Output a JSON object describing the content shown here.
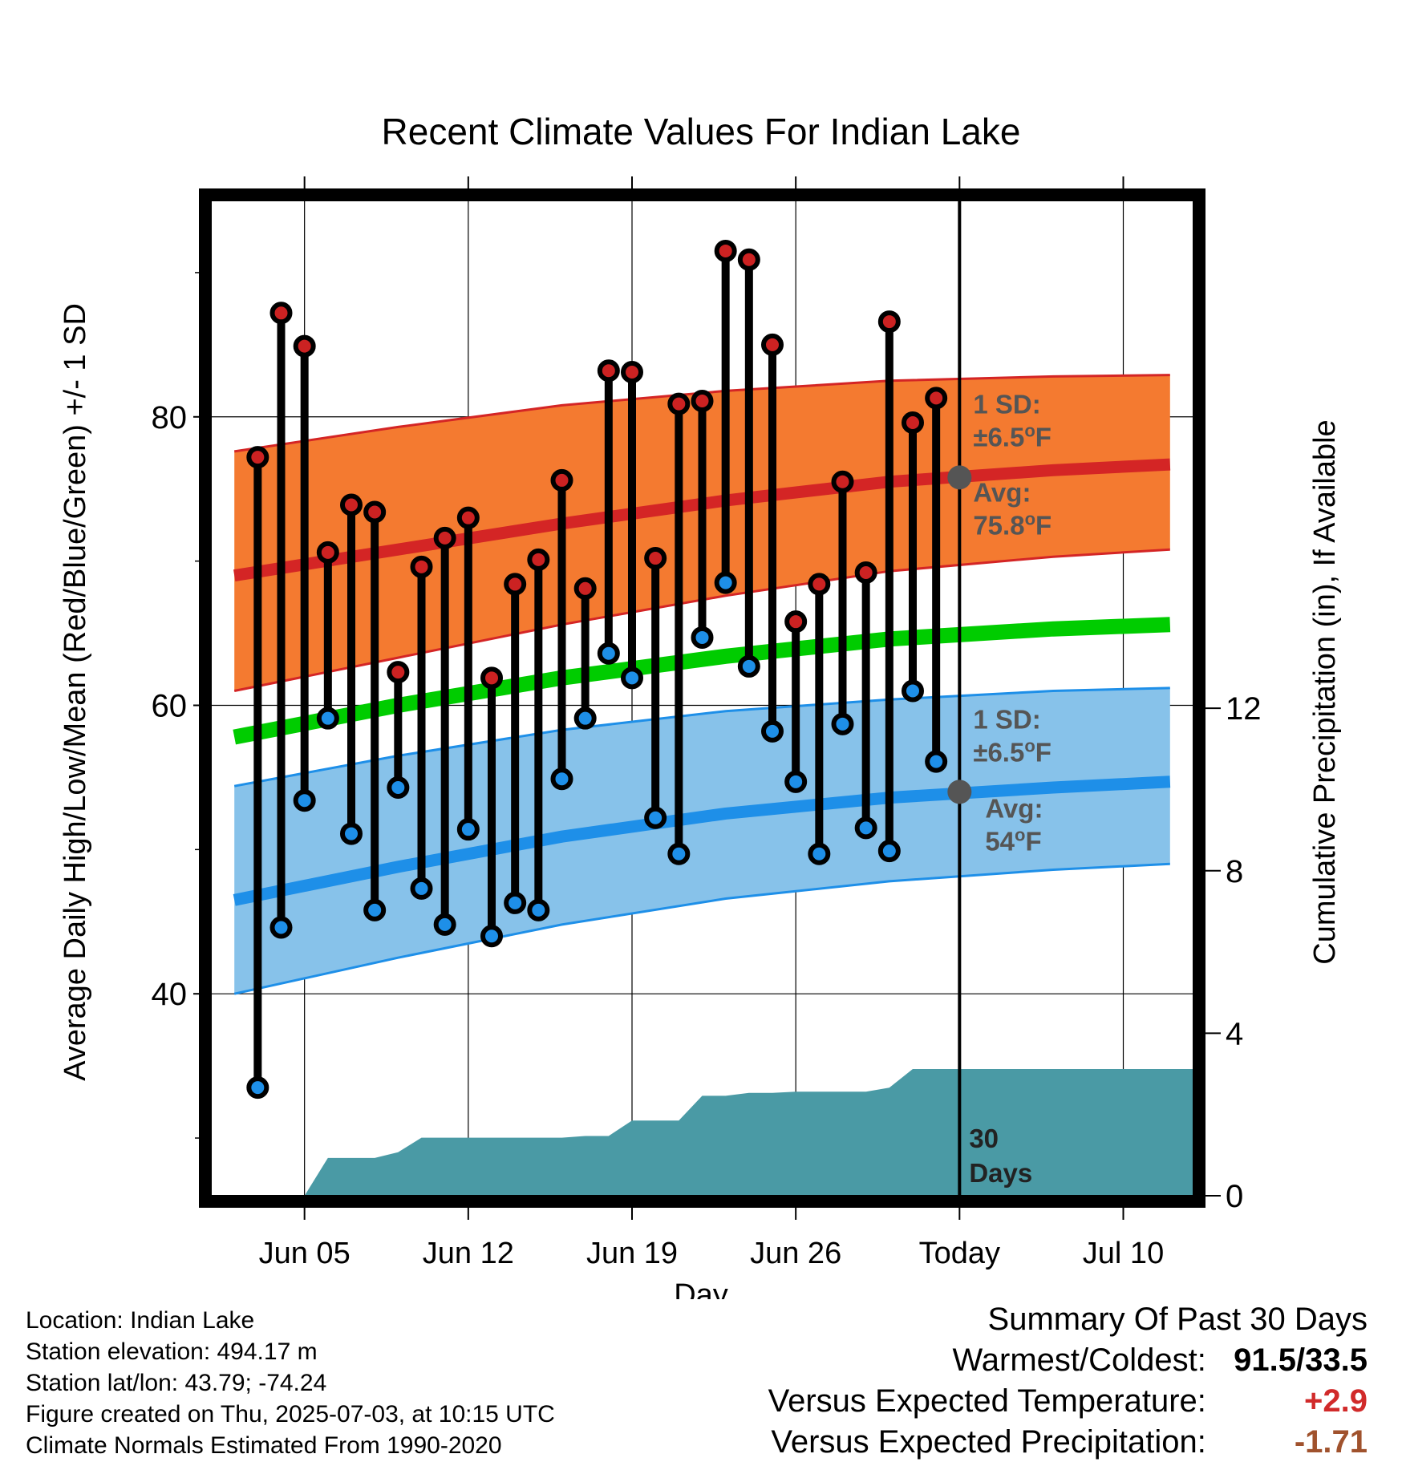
{
  "chart_data": {
    "type": "line",
    "title": "Recent Climate Values For Indian Lake",
    "xlabel": "Day",
    "ylabel_left": "Average Daily High/Low/Mean (Red/Blue/Green) +/- 1 SD",
    "ylabel_right": "Cumulative Precipitation (in), If Available",
    "x_range": [
      "2025-06-01",
      "2025-07-13"
    ],
    "x_ticks": [
      {
        "date": "2025-06-05",
        "label": "Jun 05"
      },
      {
        "date": "2025-06-12",
        "label": "Jun 12"
      },
      {
        "date": "2025-06-19",
        "label": "Jun 19"
      },
      {
        "date": "2025-06-26",
        "label": "Jun 26"
      },
      {
        "date": "2025-07-03",
        "label": "Today"
      },
      {
        "date": "2025-07-10",
        "label": "Jul 10"
      }
    ],
    "ylim_left": [
      26,
      95
    ],
    "y_ticks_left": [
      40,
      60,
      80
    ],
    "ylim_right": [
      0,
      24.5
    ],
    "y_ticks_right": [
      0,
      4,
      8,
      12
    ],
    "today": "2025-07-03",
    "grid": true,
    "normals": {
      "x": [
        "2025-06-02",
        "2025-06-09",
        "2025-06-16",
        "2025-06-23",
        "2025-06-30",
        "2025-07-07",
        "2025-07-12"
      ],
      "high_avg": [
        69.0,
        70.8,
        72.6,
        74.2,
        75.5,
        76.3,
        76.7
      ],
      "high_sd_upper": [
        77.6,
        79.3,
        80.8,
        81.8,
        82.5,
        82.8,
        82.9
      ],
      "high_sd_lower": [
        61.0,
        63.3,
        65.6,
        67.6,
        69.3,
        70.3,
        70.8
      ],
      "mean_avg": [
        57.8,
        60.0,
        61.9,
        63.4,
        64.6,
        65.3,
        65.6
      ],
      "low_avg": [
        46.5,
        48.8,
        50.9,
        52.5,
        53.6,
        54.3,
        54.7
      ],
      "low_sd_upper": [
        54.4,
        56.5,
        58.3,
        59.6,
        60.4,
        61.0,
        61.2
      ],
      "low_sd_lower": [
        40.0,
        42.5,
        44.8,
        46.6,
        47.8,
        48.6,
        49.0
      ]
    },
    "series": [
      {
        "name": "High",
        "color": "#cc2222",
        "x": [
          "2025-06-03",
          "2025-06-04",
          "2025-06-05",
          "2025-06-06",
          "2025-06-07",
          "2025-06-08",
          "2025-06-09",
          "2025-06-10",
          "2025-06-11",
          "2025-06-12",
          "2025-06-13",
          "2025-06-14",
          "2025-06-15",
          "2025-06-16",
          "2025-06-17",
          "2025-06-18",
          "2025-06-19",
          "2025-06-20",
          "2025-06-21",
          "2025-06-22",
          "2025-06-23",
          "2025-06-24",
          "2025-06-25",
          "2025-06-26",
          "2025-06-27",
          "2025-06-28",
          "2025-06-29",
          "2025-06-30",
          "2025-07-01",
          "2025-07-02"
        ],
        "values": [
          77.2,
          87.2,
          84.9,
          70.6,
          73.9,
          73.4,
          62.3,
          69.6,
          71.6,
          73.0,
          61.9,
          68.4,
          70.1,
          75.6,
          68.1,
          83.2,
          83.1,
          70.2,
          80.9,
          81.1,
          91.5,
          90.9,
          85.0,
          65.8,
          68.4,
          75.5,
          69.2,
          86.6,
          79.6,
          81.3
        ]
      },
      {
        "name": "Low",
        "color": "#1e8fe8",
        "x": [
          "2025-06-03",
          "2025-06-04",
          "2025-06-05",
          "2025-06-06",
          "2025-06-07",
          "2025-06-08",
          "2025-06-09",
          "2025-06-10",
          "2025-06-11",
          "2025-06-12",
          "2025-06-13",
          "2025-06-14",
          "2025-06-15",
          "2025-06-16",
          "2025-06-17",
          "2025-06-18",
          "2025-06-19",
          "2025-06-20",
          "2025-06-21",
          "2025-06-22",
          "2025-06-23",
          "2025-06-24",
          "2025-06-25",
          "2025-06-26",
          "2025-06-27",
          "2025-06-28",
          "2025-06-29",
          "2025-06-30",
          "2025-07-01",
          "2025-07-02"
        ],
        "values": [
          33.5,
          44.6,
          53.4,
          59.1,
          51.1,
          45.8,
          54.3,
          47.3,
          44.8,
          51.4,
          44.0,
          46.3,
          45.8,
          54.9,
          59.1,
          63.6,
          61.9,
          52.2,
          49.7,
          64.7,
          68.5,
          62.7,
          58.2,
          54.7,
          49.7,
          58.7,
          51.5,
          49.9,
          61.0,
          56.1
        ]
      },
      {
        "name": "Cumulative Precipitation",
        "color": "#4a9aa5",
        "x": [
          "2025-06-05",
          "2025-06-06",
          "2025-06-07",
          "2025-06-08",
          "2025-06-09",
          "2025-06-10",
          "2025-06-11",
          "2025-06-12",
          "2025-06-13",
          "2025-06-14",
          "2025-06-15",
          "2025-06-16",
          "2025-06-17",
          "2025-06-18",
          "2025-06-19",
          "2025-06-20",
          "2025-06-21",
          "2025-06-22",
          "2025-06-23",
          "2025-06-24",
          "2025-06-25",
          "2025-06-26",
          "2025-06-27",
          "2025-06-28",
          "2025-06-29",
          "2025-06-30",
          "2025-07-01",
          "2025-07-02",
          "2025-07-03",
          "2025-07-13"
        ],
        "values": [
          0.0,
          0.93,
          0.93,
          0.93,
          1.07,
          1.43,
          1.43,
          1.43,
          1.43,
          1.43,
          1.43,
          1.43,
          1.47,
          1.47,
          1.85,
          1.85,
          1.85,
          2.46,
          2.46,
          2.53,
          2.53,
          2.56,
          2.56,
          2.56,
          2.56,
          2.66,
          3.12,
          3.12,
          3.12,
          3.12
        ]
      }
    ],
    "annotations": {
      "high_sd": "1 SD:",
      "high_sd_value": "±6.5",
      "high_avg_label": "Avg:",
      "high_avg_value": "75.8",
      "low_sd": "1 SD:",
      "low_sd_value": "±6.5",
      "low_avg_label": "Avg:",
      "low_avg_value": "54",
      "degree_unit": "F",
      "days_count": "30",
      "days_word": "Days"
    }
  },
  "metadata": {
    "location": "Location: Indian Lake",
    "elevation": "Station elevation: 494.17 m",
    "latlon": "Station lat/lon: 43.79; -74.24",
    "created": "Figure created on Thu, 2025-07-03, at 10:15 UTC",
    "normals": "Climate Normals Estimated From 1990-2020"
  },
  "summary": {
    "title": "Summary Of Past 30 Days",
    "warm_cold_label": "Warmest/Coldest:",
    "warm_cold_value": "91.5/33.5",
    "temp_label": "Versus Expected Temperature:",
    "temp_value": "+2.9",
    "temp_color": "#d12a2a",
    "precip_label": "Versus Expected Precipitation:",
    "precip_value": "-1.71",
    "precip_color": "#a0522d"
  },
  "colors": {
    "high_band": "#f47a30",
    "high_line": "#d42525",
    "mean_line": "#00cc00",
    "low_band": "#87c2ea",
    "low_line": "#1e8fe8",
    "precip_fill": "#4a9aa5"
  }
}
